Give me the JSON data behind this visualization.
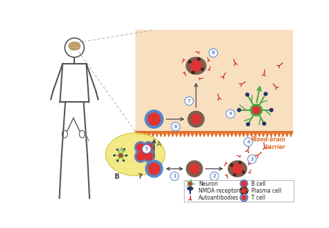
{
  "bg_color": "#ffffff",
  "panel_bg": "#f8dfc0",
  "barrier_color": "#e06820",
  "figure_size": [
    4.74,
    3.29
  ],
  "dpi": 100,
  "blood_brain_barrier_text": "Blood-brain\nbarrier",
  "panel_label_A": "A",
  "panel_label_B": "B",
  "question_mark": "?",
  "body_color": "#555555",
  "lymph_fill": "#f2e878",
  "lymph_edge": "#d4c840",
  "arrow_color": "#444444",
  "num_circle_edge": "#6688cc",
  "num_circle_text": "#6688cc"
}
